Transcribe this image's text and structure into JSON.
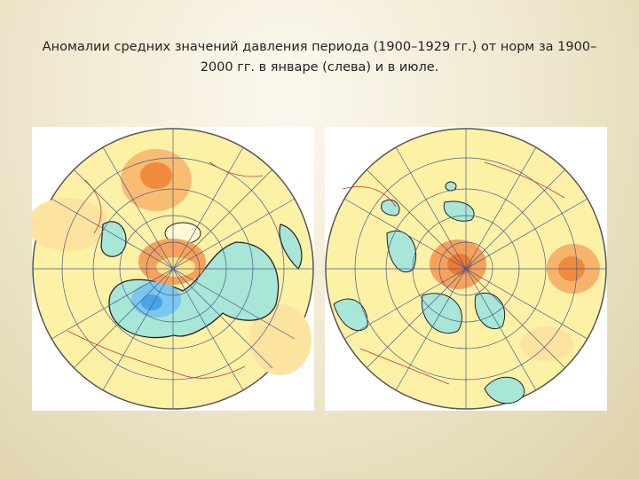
{
  "slide": {
    "title": "Аномалии средних значений давления периода (1900–1929 гг.) от норм за 1900–2000 гг. в январе (слева) и в июле."
  }
}
